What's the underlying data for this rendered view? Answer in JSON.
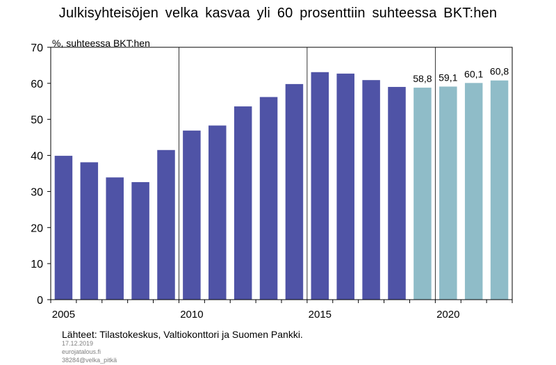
{
  "title": "Julkisyhteisöjen velka kasvaa yli 60 prosenttiin suhteessa BKT:hen",
  "source": "Lähteet: Tilastokeskus, Valtiokonttori ja Suomen Pankki.",
  "meta": {
    "date": "17.12.2019",
    "site": "eurojatalous.fi",
    "code": "38284@velka_pitkä"
  },
  "colors": {
    "actual": "#4f53a6",
    "forecast": "#8fbcc8",
    "axis": "#000000"
  },
  "chart_data": {
    "type": "bar",
    "ylabel": "%, suhteessa BKT:hen",
    "xlabel": "",
    "ylim": [
      0,
      70
    ],
    "yticks": [
      0,
      10,
      20,
      30,
      40,
      50,
      60,
      70
    ],
    "xticks": [
      "2005",
      "2010",
      "2015",
      "2020"
    ],
    "categories": [
      "2005",
      "2006",
      "2007",
      "2008",
      "2009",
      "2010",
      "2011",
      "2012",
      "2013",
      "2014",
      "2015",
      "2016",
      "2017",
      "2018",
      "2019",
      "2020",
      "2021",
      "2022"
    ],
    "series": [
      {
        "values": [
          39.9,
          38.1,
          33.9,
          32.6,
          41.5,
          46.9,
          48.3,
          53.6,
          56.2,
          59.8,
          63.1,
          62.7,
          60.9,
          59.0,
          null,
          null,
          null,
          null
        ]
      },
      {
        "values": [
          null,
          null,
          null,
          null,
          null,
          null,
          null,
          null,
          null,
          null,
          null,
          null,
          null,
          null,
          58.8,
          59.1,
          60.1,
          60.8
        ],
        "labels": [
          "58,8",
          "59,1",
          "60,1",
          "60,8"
        ]
      }
    ],
    "gridlines": "vertical at 2010, 2015, 2020",
    "legend": "none"
  }
}
